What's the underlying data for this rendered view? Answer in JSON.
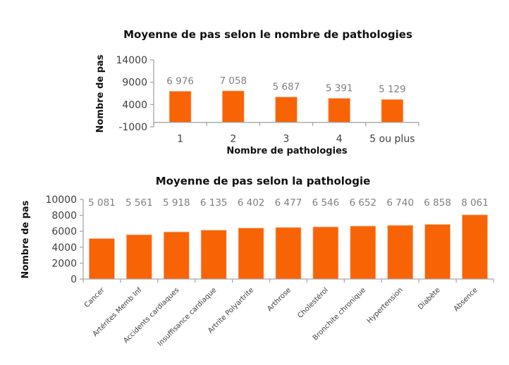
{
  "colors": {
    "bar": "#f86306",
    "axis": "#a6a6a6",
    "data_label": "#7f7f7f",
    "title": "#111111"
  },
  "chart_data": [
    {
      "type": "bar",
      "title": "Moyenne de pas selon le nombre de pathologies",
      "xlabel": "Nombre de pathologies",
      "ylabel": "Nombre de pas",
      "categories": [
        "1",
        "2",
        "3",
        "4",
        "5 ou plus"
      ],
      "values": [
        6976,
        7058,
        5687,
        5391,
        5129
      ],
      "data_labels": [
        "6 976",
        "7 058",
        "5 687",
        "5 391",
        "5 129"
      ],
      "ylim": [
        -1000,
        14000
      ],
      "yticks": [
        -1000,
        4000,
        9000,
        14000
      ],
      "ytick_labels": [
        "-1000",
        "4000",
        "9000",
        "14000"
      ],
      "grid": false,
      "legend": "none"
    },
    {
      "type": "bar",
      "title": "Moyenne de pas selon la pathologie",
      "xlabel": "",
      "ylabel": "Nombre de pas",
      "categories": [
        "Cancer",
        "Artérites Memb Inf",
        "Accidents cardiaques",
        "Insuffisance cardiaque",
        "Artrite Polyartrite",
        "Arthrose",
        "Cholestérol",
        "Bronchite chronique",
        "Hypertension",
        "Diabète",
        "Absence"
      ],
      "values": [
        5081,
        5561,
        5918,
        6135,
        6402,
        6477,
        6546,
        6652,
        6740,
        6858,
        8061
      ],
      "data_labels": [
        "5 081",
        "5 561",
        "5 918",
        "6 135",
        "6 402",
        "6 477",
        "6 546",
        "6 652",
        "6 740",
        "6 858",
        "8 061"
      ],
      "ylim": [
        0,
        10000
      ],
      "yticks": [
        0,
        2000,
        4000,
        6000,
        8000,
        10000
      ],
      "ytick_labels": [
        "0",
        "2000",
        "4000",
        "6000",
        "8000",
        "10000"
      ],
      "grid": false,
      "legend": "none"
    }
  ]
}
